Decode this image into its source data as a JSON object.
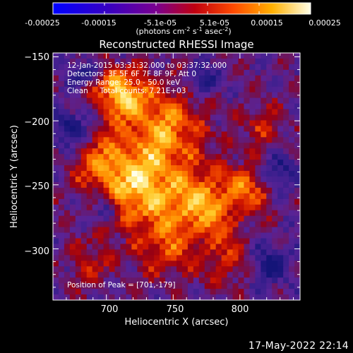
{
  "colorbar": {
    "ticks": [
      "-0.00025",
      "-0.00015",
      "-5.1e-05",
      "5.1e-05",
      "0.00015",
      "0.00025"
    ],
    "unit_main": "(photons cm",
    "unit_sup1": "-2",
    "unit_mid1": " s",
    "unit_sup2": "-1",
    "unit_mid2": " asec",
    "unit_sup3": "-2",
    "unit_end": ")",
    "range": [
      -0.00025,
      0.00025
    ]
  },
  "chart_data": {
    "type": "heatmap",
    "title": "Reconstructed RHESSI Image",
    "xlabel": "Heliocentric X (arcsec)",
    "ylabel": "Heliocentric Y (arcsec)",
    "xlim": [
      660,
      845
    ],
    "ylim": [
      -340,
      -147
    ],
    "x_ticks": [
      700,
      750,
      800
    ],
    "y_ticks": [
      -150,
      -200,
      -250,
      -300
    ],
    "x_tick_labels": [
      "700",
      "750",
      "800"
    ],
    "y_tick_labels": [
      "−150",
      "−200",
      "−250",
      "−300"
    ],
    "colormap": "red-temperature",
    "peak": [
      701,
      -179
    ],
    "annotations": {
      "line1": "12-Jan-2015 03:31:32.000 to 03:37:32.000",
      "line2": "Detectors: 3F 5F 6F 7F 8F 9F, Att 0",
      "line3": "Energy Range: 25.0 - 50.0 keV",
      "line4": "Clean     Total counts: 7.21E+03",
      "peak_label": "Position of Peak = [701,-179]"
    }
  },
  "timestamp": "17-May-2022 22:14"
}
